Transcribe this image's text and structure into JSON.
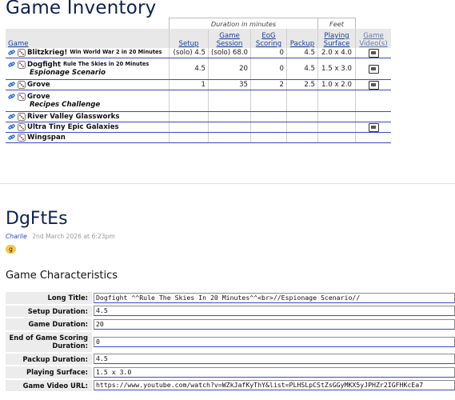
{
  "page_title": "Game Inventory",
  "inventory": {
    "group_headers": {
      "duration": "Duration in minutes",
      "feet": "Feet"
    },
    "columns": [
      "Game",
      "Setup",
      "Game Session",
      "EoG Scoring",
      "Packup",
      "Playing Surface",
      "Game Video(s)"
    ],
    "rows": [
      {
        "name": "Blitzkrieg!",
        "sup": "Win World War 2 in 20 Minutes",
        "sub": "",
        "setup": "(solo) 4.5",
        "session": "(solo) 68.0",
        "eog": "0",
        "packup": "4.5",
        "surface": "2.0 x 4.0",
        "video": true
      },
      {
        "name": "Dogfight",
        "sup": "Rule The Skies in 20 Minutes",
        "sub": "Espionage Scenario",
        "setup": "4.5",
        "session": "20",
        "eog": "0",
        "packup": "4.5",
        "surface": "1.5 x 3.0",
        "video": true
      },
      {
        "name": "Grove",
        "sup": "",
        "sub": "",
        "setup": "1",
        "session": "35",
        "eog": "2",
        "packup": "2.5",
        "surface": "1.0 x 2.0",
        "video": true
      },
      {
        "name": "Grove",
        "sup": "",
        "sub": "Recipes Challenge",
        "setup": "",
        "session": "",
        "eog": "",
        "packup": "",
        "surface": "",
        "video": false
      },
      {
        "name": "River Valley Glassworks",
        "sup": "",
        "sub": "",
        "setup": "",
        "session": "",
        "eog": "",
        "packup": "",
        "surface": "",
        "video": false
      },
      {
        "name": "Ultra Tiny Epic Galaxies",
        "sup": "",
        "sub": "",
        "setup": "",
        "session": "",
        "eog": "",
        "packup": "",
        "surface": "",
        "video": true
      },
      {
        "name": "Wingspan",
        "sup": "",
        "sub": "",
        "setup": "",
        "session": "",
        "eog": "",
        "packup": "",
        "surface": "",
        "video": false
      }
    ]
  },
  "post": {
    "title": "DgFtEs",
    "author": "Charlie",
    "date": "2nd March 2026 at 6:23pm",
    "tag": "g"
  },
  "characteristics": {
    "section_title": "Game Characteristics",
    "fields": [
      {
        "label": "Long Title:",
        "value": "Dogfight ^^Rule The Skies In 20 Minutes^^<br>//Espionage Scenario//"
      },
      {
        "label": "Setup Duration:",
        "value": "4.5"
      },
      {
        "label": "Game Duration:",
        "value": "20"
      },
      {
        "label": "End of Game Scoring Duration:",
        "value": "0"
      },
      {
        "label": "Packup Duration:",
        "value": "4.5"
      },
      {
        "label": "Playing Surface:",
        "value": "1.5 x 3.0"
      },
      {
        "label": "Game Video URL:",
        "value": "https://www.youtube.com/watch?v=WZkJafKyThY&list=PLHSLpCStZsGGyMKX5yJPHZr2IGFHKcEa7"
      }
    ]
  },
  "icons": {
    "link": "link-icon",
    "dice": "dice-icon",
    "video": "video-icon"
  },
  "colors": {
    "title": "#0e2150",
    "link": "#1a3f9c",
    "row_rule": "#3b48d0",
    "tag": "#f2c94c"
  }
}
